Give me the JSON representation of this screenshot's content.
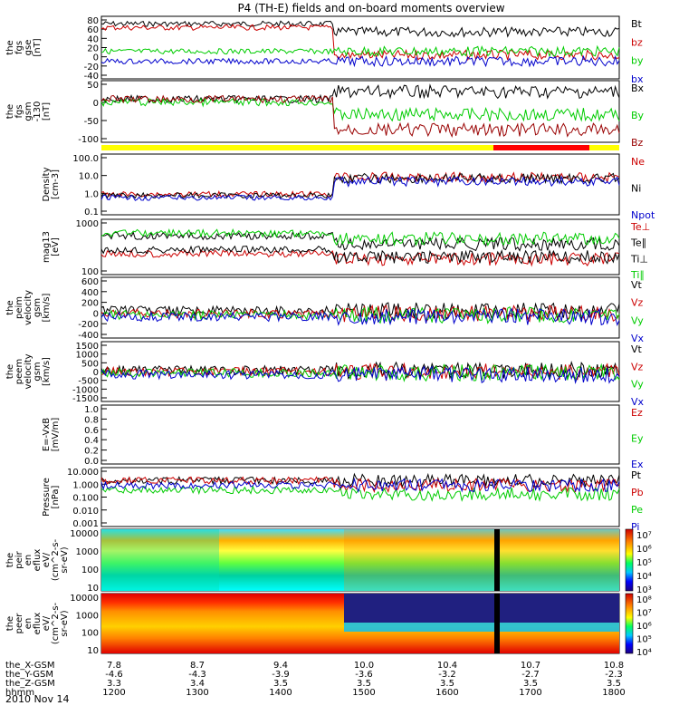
{
  "figure": {
    "title": "P4 (TH-E) fields and on-board moments overview",
    "footer": {
      "rows": [
        {
          "label": "the_X-GSM",
          "values": [
            "7.8",
            "8.7",
            "9.4",
            "10.0",
            "10.4",
            "10.7",
            "10.8"
          ]
        },
        {
          "label": "the_Y-GSM",
          "values": [
            "-4.6",
            "-4.3",
            "-3.9",
            "-3.6",
            "-3.2",
            "-2.7",
            "-2.3"
          ]
        },
        {
          "label": "the_Z-GSM",
          "values": [
            "3.3",
            "3.4",
            "3.5",
            "3.5",
            "3.5",
            "3.5",
            "3.5"
          ]
        },
        {
          "label": "hhmm",
          "values": [
            "1200",
            "1300",
            "1400",
            "1500",
            "1600",
            "1700",
            "1800"
          ]
        }
      ],
      "date": "2010 Nov 14"
    }
  },
  "chart_data": [
    {
      "type": "line",
      "ylabel": [
        "the",
        "fgs",
        "gse",
        "[nT]"
      ],
      "yticks": [
        "80",
        "60",
        "40",
        "20",
        "0",
        "-20",
        "-40"
      ],
      "ylim": [
        -45,
        85
      ],
      "x": [
        "12:00",
        "18:00"
      ],
      "series": [
        {
          "name": "Bt",
          "color": "#000000",
          "approx": "~60 nT until 15:00 then 20-60 nT variable"
        },
        {
          "name": "bz",
          "color": "#cc0000",
          "approx": "~55 nT decreasing to -30 after 15:00"
        },
        {
          "name": "by",
          "color": "#00cc00",
          "approx": "~-5 nT"
        },
        {
          "name": "bx",
          "color": "#0000cc",
          "approx": "~-20 nT"
        }
      ]
    },
    {
      "type": "line",
      "ylabel": [
        "the",
        "fgs",
        "gsm",
        "-130",
        "[nT]"
      ],
      "yticks": [
        "50",
        "0",
        "-50",
        "-100"
      ],
      "ylim": [
        -120,
        55
      ],
      "series": [
        {
          "name": "Bx",
          "color": "#000000"
        },
        {
          "name": "By",
          "color": "#00cc00"
        },
        {
          "name": "Bz",
          "color": "#990000"
        }
      ]
    },
    {
      "type": "line",
      "ylabel": [
        "Density",
        "[cm-3]"
      ],
      "yticks": [
        "100.0",
        "10.0",
        "1.0",
        "0.1"
      ],
      "yscale": "log",
      "series": [
        {
          "name": "Ne",
          "color": "#cc0000"
        },
        {
          "name": "Ni",
          "color": "#000000"
        },
        {
          "name": "Npot",
          "color": "#0000cc"
        }
      ]
    },
    {
      "type": "line",
      "ylabel": [
        "mag13",
        "[eV]"
      ],
      "yticks": [
        "1000",
        "100"
      ],
      "yscale": "log",
      "series": [
        {
          "name": "Te⊥",
          "color": "#cc0000"
        },
        {
          "name": "Te∥",
          "color": "#000000"
        },
        {
          "name": "Ti⊥",
          "color": "#000000"
        },
        {
          "name": "Ti∥",
          "color": "#00cc00"
        }
      ]
    },
    {
      "type": "line",
      "ylabel": [
        "the",
        "peim",
        "velocity",
        "gsm",
        "[km/s]"
      ],
      "yticks": [
        "600",
        "400",
        "200",
        "0",
        "-200",
        "-400"
      ],
      "series": [
        {
          "name": "Vt",
          "color": "#000000"
        },
        {
          "name": "Vz",
          "color": "#cc0000"
        },
        {
          "name": "Vy",
          "color": "#00cc00"
        },
        {
          "name": "Vx",
          "color": "#0000cc"
        }
      ]
    },
    {
      "type": "line",
      "ylabel": [
        "the",
        "peem",
        "velocity",
        "gsm",
        "[km/s]"
      ],
      "yticks": [
        "1500",
        "1000",
        "500",
        "0",
        "-500",
        "-1000",
        "-1500"
      ],
      "series": [
        {
          "name": "Vt",
          "color": "#000000"
        },
        {
          "name": "Vz",
          "color": "#cc0000"
        },
        {
          "name": "Vy",
          "color": "#00cc00"
        },
        {
          "name": "Vx",
          "color": "#0000cc"
        }
      ]
    },
    {
      "type": "line",
      "ylabel": [
        "E=-VxB",
        "[mV/m]"
      ],
      "yticks": [
        "1.0",
        "0.8",
        "0.6",
        "0.4",
        "0.2",
        "0.0"
      ],
      "series": [
        {
          "name": "Ez",
          "color": "#cc0000"
        },
        {
          "name": "Ey",
          "color": "#00cc00"
        },
        {
          "name": "Ex",
          "color": "#0000cc"
        }
      ]
    },
    {
      "type": "line",
      "ylabel": [
        "Pressure",
        "[nPa]"
      ],
      "yticks": [
        "10.000",
        "1.000",
        "0.100",
        "0.010",
        "0.001"
      ],
      "yscale": "log",
      "series": [
        {
          "name": "Pt",
          "color": "#000000"
        },
        {
          "name": "Pb",
          "color": "#cc0000"
        },
        {
          "name": "Pe",
          "color": "#00cc00"
        },
        {
          "name": "Pi",
          "color": "#0000cc"
        }
      ]
    },
    {
      "type": "heatmap",
      "ylabel": [
        "the",
        "peir",
        "en",
        "eflux",
        "eV/",
        "(cm^2-s-",
        "sr-eV)"
      ],
      "yticks": [
        "10000",
        "1000",
        "100",
        "10"
      ],
      "colorbar": [
        "10⁷",
        "10⁶",
        "10⁵",
        "10⁴",
        "10³"
      ]
    },
    {
      "type": "heatmap",
      "ylabel": [
        "the",
        "peer",
        "en",
        "eflux",
        "eV/",
        "(cm^2-s-",
        "sr-eV)"
      ],
      "yticks": [
        "10000",
        "1000",
        "100",
        "10"
      ],
      "colorbar": [
        "10⁸",
        "10⁷",
        "10⁶",
        "10⁵",
        "10⁴"
      ]
    }
  ]
}
